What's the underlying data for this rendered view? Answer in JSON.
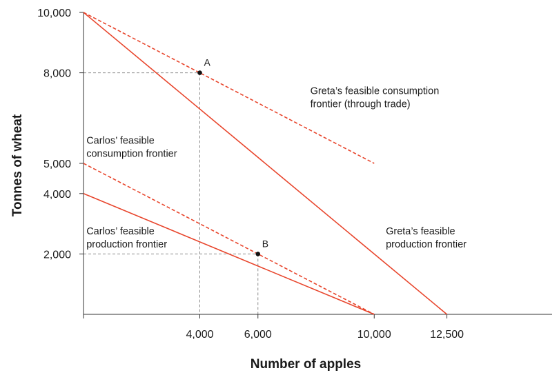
{
  "chart_data": {
    "type": "line",
    "title": "",
    "xlabel": "Number of apples",
    "ylabel": "Tonnes of wheat",
    "xlim": [
      0,
      16000
    ],
    "ylim": [
      0,
      10000
    ],
    "grid": false,
    "x_ticks": [
      {
        "value": 4000,
        "label": "4,000"
      },
      {
        "value": 6000,
        "label": "6,000"
      },
      {
        "value": 10000,
        "label": "10,000"
      },
      {
        "value": 12500,
        "label": "12,500"
      }
    ],
    "y_ticks": [
      {
        "value": 2000,
        "label": "2,000"
      },
      {
        "value": 4000,
        "label": "4,000"
      },
      {
        "value": 5000,
        "label": "5,000"
      },
      {
        "value": 8000,
        "label": "8,000"
      },
      {
        "value": 10000,
        "label": "10,000"
      }
    ],
    "colors": {
      "series": "#e8452c",
      "guide": "#8c8c8c",
      "axis": "#333333",
      "point": "#111111"
    },
    "series": [
      {
        "key": "greta_production",
        "style": "solid",
        "points": [
          [
            0,
            10000
          ],
          [
            12500,
            0
          ]
        ]
      },
      {
        "key": "greta_consumption",
        "style": "dashed",
        "points": [
          [
            0,
            10000
          ],
          [
            10000,
            5000
          ]
        ]
      },
      {
        "key": "carlos_production",
        "style": "solid",
        "points": [
          [
            0,
            4000
          ],
          [
            10000,
            0
          ]
        ]
      },
      {
        "key": "carlos_consumption",
        "style": "dashed",
        "points": [
          [
            0,
            5000
          ],
          [
            10000,
            0
          ]
        ]
      }
    ],
    "points": [
      {
        "label": "A",
        "x": 4000,
        "y": 8000
      },
      {
        "label": "B",
        "x": 6000,
        "y": 2000
      }
    ],
    "annotations": [
      {
        "key": "greta_consumption",
        "lines": [
          "Greta’s feasible consumption",
          "frontier (through trade)"
        ],
        "x": 7800,
        "y": 7300
      },
      {
        "key": "carlos_consumption",
        "lines": [
          "Carlos’ feasible",
          "consumption frontier"
        ],
        "x": 100,
        "y": 5650
      },
      {
        "key": "carlos_production",
        "lines": [
          "Carlos’ feasible",
          "production frontier"
        ],
        "x": 100,
        "y": 2650
      },
      {
        "key": "greta_production",
        "lines": [
          "Greta’s feasible",
          "production frontier"
        ],
        "x": 10400,
        "y": 2650
      }
    ]
  }
}
